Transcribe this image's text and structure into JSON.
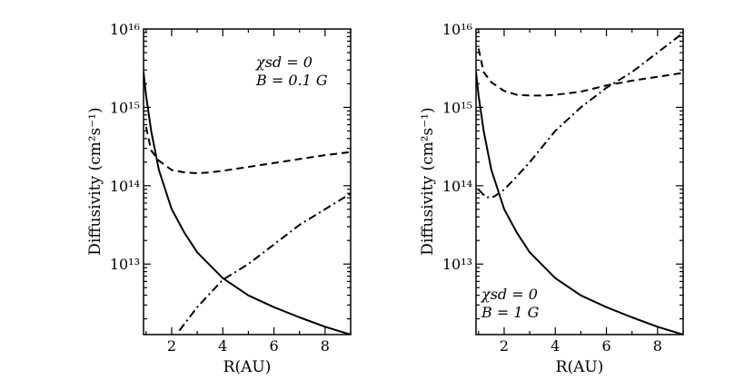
{
  "chart_data": [
    {
      "type": "line",
      "panel": "left",
      "xlabel": "R(AU)",
      "ylabel": "Diffusivity (cm²s⁻¹)",
      "xlim": [
        0.9,
        9.0
      ],
      "ylim_log10": [
        12.1,
        16.0
      ],
      "xticks": [
        2,
        4,
        6,
        8
      ],
      "xtick_labels": [
        "2",
        "4",
        "6",
        "8"
      ],
      "yticks_log10": [
        13,
        14,
        15,
        16
      ],
      "ytick_labels": [
        "10¹³",
        "10¹⁴",
        "10¹⁵",
        "10¹⁶"
      ],
      "annotation": [
        "χsd = 0",
        "B = 0.1 G"
      ],
      "annotation_position": "top-right",
      "series": [
        {
          "name": "solid",
          "style": "solid",
          "x": [
            0.9,
            1.0,
            1.2,
            1.5,
            2.0,
            2.5,
            3.0,
            4.0,
            5.0,
            6.0,
            7.0,
            8.0,
            9.0
          ],
          "log10_y": [
            15.45,
            15.15,
            14.7,
            14.2,
            13.7,
            13.4,
            13.15,
            12.82,
            12.6,
            12.45,
            12.32,
            12.2,
            12.1
          ]
        },
        {
          "name": "dashed",
          "style": "dashed",
          "x": [
            1.0,
            1.2,
            1.5,
            2.0,
            2.5,
            3.0,
            3.5,
            4.0,
            5.0,
            6.0,
            7.0,
            8.0,
            9.0
          ],
          "log10_y": [
            14.75,
            14.45,
            14.32,
            14.2,
            14.17,
            14.16,
            14.17,
            14.19,
            14.24,
            14.29,
            14.34,
            14.39,
            14.43
          ]
        },
        {
          "name": "dash-dot",
          "style": "dashdot",
          "x": [
            2.3,
            3.0,
            4.0,
            5.0,
            6.0,
            7.0,
            8.0,
            9.0
          ],
          "log10_y": [
            12.15,
            12.45,
            12.8,
            13.0,
            13.25,
            13.5,
            13.7,
            13.9
          ]
        }
      ]
    },
    {
      "type": "line",
      "panel": "right",
      "xlabel": "R(AU)",
      "ylabel": "Diffusivity (cm²s⁻¹)",
      "xlim": [
        0.9,
        9.0
      ],
      "ylim_log10": [
        12.1,
        16.0
      ],
      "xticks": [
        2,
        4,
        6,
        8
      ],
      "xtick_labels": [
        "2",
        "4",
        "6",
        "8"
      ],
      "yticks_log10": [
        13,
        14,
        15,
        16
      ],
      "ytick_labels": [
        "10¹³",
        "10¹⁴",
        "10¹⁵",
        "10¹⁶"
      ],
      "annotation": [
        "χsd = 0",
        "B = 1 G"
      ],
      "annotation_position": "bottom-left",
      "series": [
        {
          "name": "solid",
          "style": "solid",
          "x": [
            0.9,
            1.0,
            1.2,
            1.5,
            2.0,
            2.5,
            3.0,
            4.0,
            5.0,
            6.0,
            7.0,
            8.0,
            9.0
          ],
          "log10_y": [
            15.45,
            15.15,
            14.7,
            14.2,
            13.7,
            13.4,
            13.15,
            12.82,
            12.6,
            12.45,
            12.32,
            12.2,
            12.1
          ]
        },
        {
          "name": "dashed",
          "style": "dashed",
          "x": [
            1.0,
            1.2,
            1.5,
            2.0,
            2.5,
            3.0,
            3.5,
            4.0,
            5.0,
            6.0,
            7.0,
            8.0,
            9.0
          ],
          "log10_y": [
            15.75,
            15.45,
            15.32,
            15.21,
            15.16,
            15.15,
            15.15,
            15.16,
            15.2,
            15.28,
            15.34,
            15.39,
            15.44
          ]
        },
        {
          "name": "dash-dot",
          "style": "dashdot",
          "x": [
            1.0,
            1.3,
            1.6,
            2.0,
            2.5,
            3.0,
            4.0,
            5.0,
            6.0,
            7.0,
            8.0,
            9.0
          ],
          "log10_y": [
            13.95,
            13.85,
            13.86,
            13.95,
            14.12,
            14.3,
            14.7,
            15.0,
            15.25,
            15.45,
            15.7,
            15.95
          ]
        }
      ]
    }
  ]
}
